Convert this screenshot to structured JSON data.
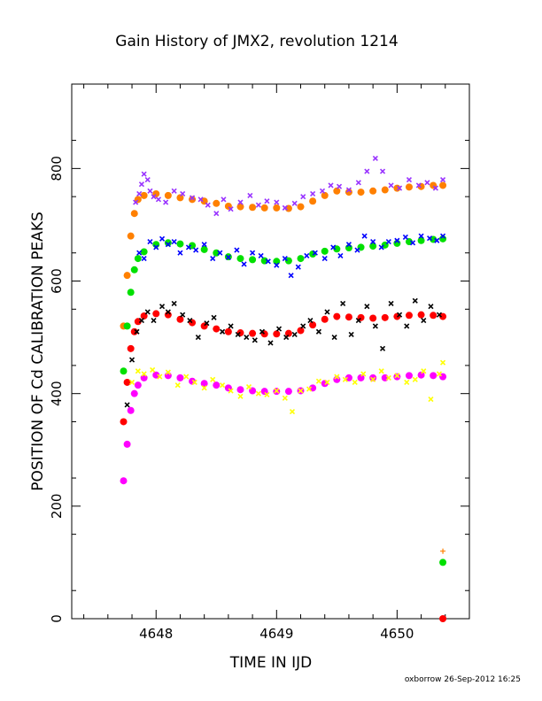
{
  "chart_data": {
    "type": "scatter",
    "title": "Gain History of JMX2, revolution 1214",
    "xlabel": "TIME IN IJD",
    "ylabel": "POSITION OF Cd CALIBRATION PEAKS",
    "xlim": [
      4647.3,
      4650.6
    ],
    "ylim": [
      0,
      950
    ],
    "x_ticks": [
      4648,
      4649,
      4650
    ],
    "x_tick_labels": [
      "4648",
      "4649",
      "4650"
    ],
    "y_ticks": [
      0,
      200,
      400,
      600,
      800
    ],
    "y_tick_labels": [
      "0",
      "200",
      "400",
      "600",
      "800"
    ],
    "grid": false,
    "legend": "none",
    "footer": "oxborrow 26-Sep-2012 16:25",
    "series": [
      {
        "color": "#ff8000",
        "marker": "o",
        "x": [
          4647.73,
          4647.76,
          4647.79,
          4647.82,
          4647.85,
          4647.9,
          4648.0,
          4648.1,
          4648.2,
          4648.3,
          4648.4,
          4648.5,
          4648.6,
          4648.7,
          4648.8,
          4648.9,
          4649.0,
          4649.1,
          4649.2,
          4649.3,
          4649.4,
          4649.5,
          4649.6,
          4649.7,
          4649.8,
          4649.9,
          4650.0,
          4650.1,
          4650.2,
          4650.3,
          4650.38
        ],
        "y": [
          520,
          610,
          680,
          720,
          745,
          752,
          755,
          752,
          748,
          745,
          742,
          738,
          733,
          732,
          731,
          730,
          730,
          729,
          732,
          742,
          752,
          760,
          758,
          758,
          760,
          762,
          765,
          767,
          768,
          770,
          770
        ]
      },
      {
        "color": "#9933ff",
        "marker": "x",
        "x": [
          4647.83,
          4647.86,
          4647.88,
          4647.9,
          4647.93,
          4647.95,
          4647.98,
          4648.02,
          4648.08,
          4648.15,
          4648.22,
          4648.3,
          4648.37,
          4648.43,
          4648.5,
          4648.56,
          4648.62,
          4648.7,
          4648.78,
          4648.85,
          4648.92,
          4649.0,
          4649.07,
          4649.15,
          4649.22,
          4649.3,
          4649.38,
          4649.45,
          4649.52,
          4649.6,
          4649.68,
          4649.75,
          4649.82,
          4649.88,
          4649.95,
          4650.02,
          4650.1,
          4650.18,
          4650.25,
          4650.32,
          4650.38
        ],
        "y": [
          740,
          755,
          772,
          790,
          780,
          760,
          750,
          745,
          740,
          760,
          755,
          748,
          745,
          735,
          720,
          745,
          728,
          740,
          752,
          735,
          742,
          740,
          730,
          738,
          750,
          755,
          760,
          770,
          768,
          762,
          775,
          795,
          818,
          795,
          770,
          765,
          780,
          770,
          775,
          765,
          780
        ]
      },
      {
        "color": "#00e000",
        "marker": "o",
        "x": [
          4647.73,
          4647.76,
          4647.79,
          4647.82,
          4647.85,
          4647.9,
          4648.0,
          4648.1,
          4648.2,
          4648.3,
          4648.4,
          4648.5,
          4648.6,
          4648.7,
          4648.8,
          4648.9,
          4649.0,
          4649.1,
          4649.2,
          4649.3,
          4649.4,
          4649.5,
          4649.6,
          4649.7,
          4649.8,
          4649.9,
          4650.0,
          4650.1,
          4650.2,
          4650.3,
          4650.38,
          4650.38
        ],
        "y": [
          440,
          520,
          580,
          620,
          640,
          652,
          665,
          668,
          666,
          663,
          656,
          650,
          643,
          640,
          638,
          636,
          635,
          636,
          640,
          648,
          653,
          657,
          659,
          660,
          662,
          664,
          667,
          670,
          672,
          674,
          675,
          100
        ]
      },
      {
        "color": "#0000ff",
        "marker": "x",
        "x": [
          4647.86,
          4647.9,
          4647.95,
          4648.0,
          4648.05,
          4648.1,
          4648.15,
          4648.2,
          4648.27,
          4648.33,
          4648.4,
          4648.47,
          4648.53,
          4648.6,
          4648.67,
          4648.73,
          4648.8,
          4648.87,
          4648.93,
          4649.0,
          4649.07,
          4649.12,
          4649.18,
          4649.25,
          4649.32,
          4649.4,
          4649.47,
          4649.53,
          4649.6,
          4649.67,
          4649.73,
          4649.8,
          4649.87,
          4649.93,
          4650.0,
          4650.07,
          4650.13,
          4650.2,
          4650.27,
          4650.33,
          4650.38
        ],
        "y": [
          650,
          640,
          670,
          660,
          675,
          665,
          670,
          650,
          660,
          655,
          665,
          640,
          650,
          642,
          655,
          630,
          650,
          645,
          635,
          628,
          640,
          610,
          625,
          645,
          650,
          640,
          660,
          645,
          665,
          655,
          680,
          670,
          660,
          670,
          672,
          678,
          668,
          680,
          676,
          672,
          680
        ]
      },
      {
        "color": "#ff0000",
        "marker": "o",
        "x": [
          4647.73,
          4647.76,
          4647.79,
          4647.82,
          4647.85,
          4647.9,
          4648.0,
          4648.1,
          4648.2,
          4648.3,
          4648.4,
          4648.5,
          4648.6,
          4648.7,
          4648.8,
          4648.9,
          4649.0,
          4649.1,
          4649.2,
          4649.3,
          4649.4,
          4649.5,
          4649.6,
          4649.7,
          4649.8,
          4649.9,
          4650.0,
          4650.1,
          4650.2,
          4650.3,
          4650.38,
          4650.38
        ],
        "y": [
          350,
          420,
          480,
          510,
          528,
          538,
          542,
          540,
          532,
          526,
          520,
          515,
          510,
          508,
          507,
          506,
          506,
          507,
          512,
          522,
          532,
          537,
          536,
          535,
          534,
          535,
          537,
          539,
          540,
          539,
          537,
          0
        ]
      },
      {
        "color": "#000000",
        "marker": "x",
        "x": [
          4647.76,
          4647.8,
          4647.84,
          4647.88,
          4647.93,
          4647.98,
          4648.05,
          4648.1,
          4648.15,
          4648.22,
          4648.28,
          4648.35,
          4648.42,
          4648.48,
          4648.55,
          4648.62,
          4648.68,
          4648.75,
          4648.82,
          4648.88,
          4648.95,
          4649.02,
          4649.08,
          4649.15,
          4649.22,
          4649.28,
          4649.35,
          4649.42,
          4649.48,
          4649.55,
          4649.62,
          4649.68,
          4649.75,
          4649.82,
          4649.88,
          4649.95,
          4650.02,
          4650.08,
          4650.15,
          4650.22,
          4650.28,
          4650.35
        ],
        "y": [
          380,
          460,
          510,
          530,
          545,
          530,
          555,
          545,
          560,
          540,
          530,
          500,
          525,
          535,
          510,
          520,
          505,
          500,
          495,
          510,
          490,
          515,
          500,
          505,
          520,
          530,
          510,
          545,
          500,
          560,
          505,
          530,
          555,
          520,
          480,
          560,
          540,
          520,
          565,
          530,
          555,
          540
        ]
      },
      {
        "color": "#ff00ff",
        "marker": "o",
        "x": [
          4647.73,
          4647.76,
          4647.79,
          4647.82,
          4647.85,
          4647.9,
          4648.0,
          4648.1,
          4648.2,
          4648.3,
          4648.4,
          4648.5,
          4648.6,
          4648.7,
          4648.8,
          4648.9,
          4649.0,
          4649.1,
          4649.2,
          4649.3,
          4649.4,
          4649.5,
          4649.6,
          4649.7,
          4649.8,
          4649.9,
          4650.0,
          4650.1,
          4650.2,
          4650.3,
          4650.38
        ],
        "y": [
          245,
          310,
          370,
          400,
          415,
          428,
          433,
          432,
          428,
          422,
          418,
          415,
          410,
          407,
          405,
          404,
          404,
          404,
          405,
          410,
          418,
          425,
          428,
          428,
          428,
          428,
          430,
          432,
          433,
          432,
          430
        ]
      },
      {
        "color": "#ffff00",
        "marker": "x",
        "x": [
          4647.8,
          4647.85,
          4647.9,
          4647.97,
          4648.03,
          4648.1,
          4648.18,
          4648.25,
          4648.32,
          4648.4,
          4648.47,
          4648.55,
          4648.62,
          4648.7,
          4648.77,
          4648.85,
          4648.92,
          4649.0,
          4649.07,
          4649.13,
          4649.2,
          4649.27,
          4649.35,
          4649.42,
          4649.5,
          4649.57,
          4649.65,
          4649.72,
          4649.8,
          4649.87,
          4649.93,
          4650.0,
          4650.08,
          4650.15,
          4650.22,
          4650.28,
          4650.35,
          4650.38
        ],
        "y": [
          420,
          440,
          435,
          442,
          430,
          438,
          415,
          430,
          420,
          410,
          425,
          415,
          405,
          395,
          412,
          400,
          398,
          405,
          392,
          368,
          405,
          408,
          422,
          420,
          430,
          425,
          420,
          435,
          425,
          440,
          428,
          432,
          420,
          425,
          440,
          390,
          435,
          455
        ]
      },
      {
        "color": "#ff8000",
        "marker": "+",
        "x": [
          4650.38
        ],
        "y": [
          120
        ]
      }
    ]
  }
}
